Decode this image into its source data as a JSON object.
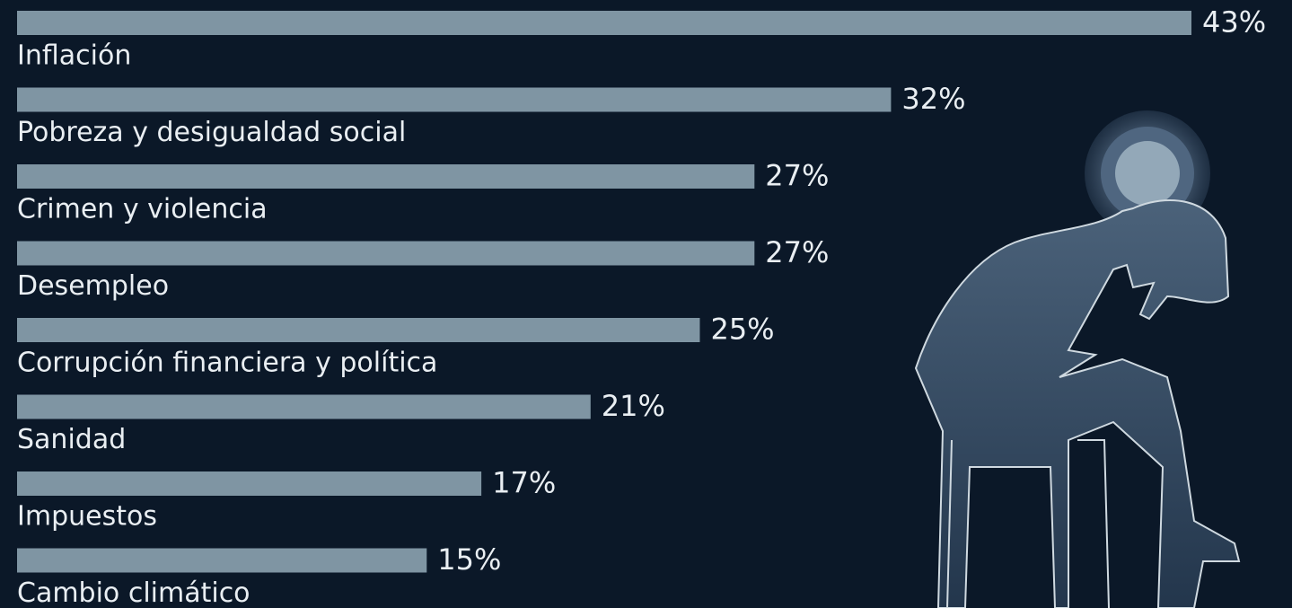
{
  "chart_data": {
    "type": "bar",
    "orientation": "horizontal",
    "categories": [
      "Inflación",
      "Pobreza y desigualdad social",
      "Crimen y violencia",
      "Desempleo",
      "Corrupción financiera y política",
      "Sanidad",
      "Impuestos",
      "Cambio climático"
    ],
    "values": [
      43,
      32,
      27,
      27,
      25,
      21,
      17,
      15
    ],
    "value_labels": [
      "43%",
      "32%",
      "27%",
      "27%",
      "25%",
      "21%",
      "17%",
      "15%"
    ],
    "color": "#7f95a3"
  }
}
